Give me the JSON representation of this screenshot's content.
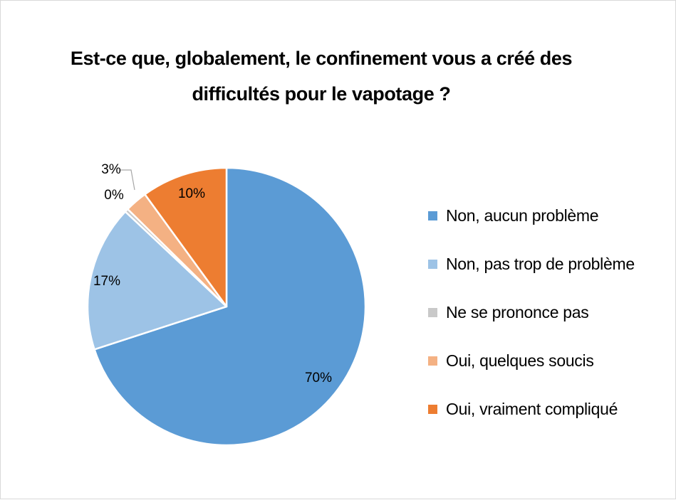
{
  "chart_data": {
    "type": "pie",
    "title_lines": [
      "Est-ce que, globalement, le confinement vous a créé des",
      "difficultés pour le vapotage ?"
    ],
    "slices": [
      {
        "label": "Non, aucun problème",
        "value": 70,
        "display": "70%",
        "color": "#5b9bd5"
      },
      {
        "label": "Non, pas trop de problème",
        "value": 17,
        "display": "17%",
        "color": "#9dc3e6"
      },
      {
        "label": "Ne se prononce pas",
        "value": 0.4,
        "display": "0%",
        "color": "#c9c9c9"
      },
      {
        "label": "Oui, quelques soucis",
        "value": 2.6,
        "display": "3%",
        "color": "#f4b183"
      },
      {
        "label": "Oui, vraiment compliqué",
        "value": 10,
        "display": "10%",
        "color": "#ed7d31"
      }
    ],
    "legend_position": "right",
    "start_angle": "12 o'clock",
    "direction": "clockwise"
  }
}
